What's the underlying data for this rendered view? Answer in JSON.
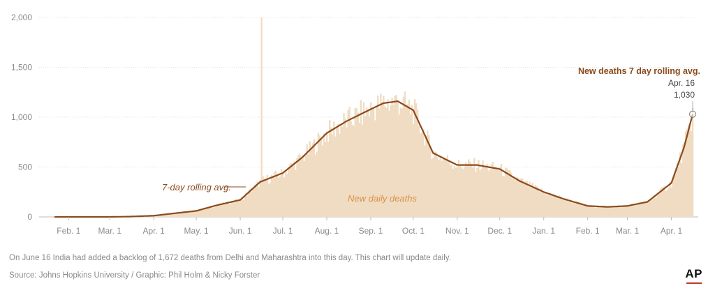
{
  "colors": {
    "bars": "#f0dcc2",
    "area": "#eed8bd",
    "line": "#8b4a1c",
    "grid": "#e3e3e3",
    "ticks": "#8a8a8a",
    "label_bars": "#d9914a",
    "label_line": "#8b4a1c",
    "logo_accent": "#c0392b"
  },
  "chart_data": {
    "type": "area",
    "title": "",
    "xlabel": "",
    "ylabel": "",
    "ylim": [
      0,
      2000
    ],
    "yticks": [
      0,
      500,
      1000,
      1500,
      2000
    ],
    "ytick_labels": [
      "0",
      "500",
      "1,000",
      "1,500",
      "2,000"
    ],
    "xtick_labels": [
      "Feb. 1",
      "Mar. 1",
      "Apr. 1",
      "May. 1",
      "Jun. 1",
      "Jul. 1",
      "Aug. 1",
      "Sep. 1",
      "Oct. 1",
      "Nov. 1",
      "Dec. 1",
      "Jan. 1",
      "Feb. 1",
      "Mar. 1",
      "Apr. 1"
    ],
    "grid": true,
    "series": [
      {
        "name": "New daily deaths",
        "kind": "bar",
        "x": [
          "2020-01-22",
          "2020-02-01",
          "2020-03-01",
          "2020-03-15",
          "2020-04-01",
          "2020-04-15",
          "2020-05-01",
          "2020-05-15",
          "2020-06-01",
          "2020-06-15",
          "2020-06-16",
          "2020-07-01",
          "2020-07-15",
          "2020-08-01",
          "2020-08-15",
          "2020-09-01",
          "2020-09-15",
          "2020-10-01",
          "2020-10-15",
          "2020-11-01",
          "2020-11-15",
          "2020-12-01",
          "2020-12-15",
          "2021-01-01",
          "2021-01-15",
          "2021-02-01",
          "2021-02-15",
          "2021-03-01",
          "2021-03-15",
          "2021-04-01",
          "2021-04-10",
          "2021-04-16"
        ],
        "y": [
          0,
          0,
          0,
          0,
          10,
          40,
          60,
          110,
          200,
          340,
          2000,
          420,
          570,
          800,
          980,
          1050,
          1150,
          1090,
          650,
          480,
          540,
          480,
          380,
          260,
          180,
          105,
          100,
          105,
          160,
          450,
          800,
          1180
        ]
      },
      {
        "name": "New deaths 7 day rolling avg.",
        "kind": "line",
        "x": [
          "2020-01-22",
          "2020-02-01",
          "2020-03-01",
          "2020-03-15",
          "2020-04-01",
          "2020-04-15",
          "2020-05-01",
          "2020-05-15",
          "2020-06-01",
          "2020-06-15",
          "2020-07-01",
          "2020-07-15",
          "2020-08-01",
          "2020-08-15",
          "2020-09-01",
          "2020-09-10",
          "2020-09-20",
          "2020-10-01",
          "2020-10-15",
          "2020-11-01",
          "2020-11-15",
          "2020-12-01",
          "2020-12-15",
          "2021-01-01",
          "2021-01-15",
          "2021-02-01",
          "2021-02-15",
          "2021-03-01",
          "2021-03-15",
          "2021-04-01",
          "2021-04-10",
          "2021-04-16"
        ],
        "y": [
          0,
          0,
          0,
          3,
          12,
          35,
          60,
          115,
          170,
          350,
          440,
          600,
          840,
          960,
          1080,
          1140,
          1160,
          1070,
          640,
          520,
          520,
          480,
          360,
          250,
          180,
          110,
          100,
          110,
          150,
          340,
          700,
          1030
        ]
      }
    ],
    "annotations": {
      "line_label": "7-day rolling avg.",
      "bar_label": "New daily deaths",
      "end_title": "New deaths 7 day rolling avg.",
      "end_date": "Apr. 16",
      "end_value": "1,030"
    }
  },
  "footer": {
    "note": "On June 16 India had added a backlog of 1,672 deaths from Delhi and Maharashtra into this day. This chart will update daily.",
    "source": "Source: Johns Hopkins University / Graphic: Phil Holm & Nicky Forster",
    "logo": "AP"
  }
}
